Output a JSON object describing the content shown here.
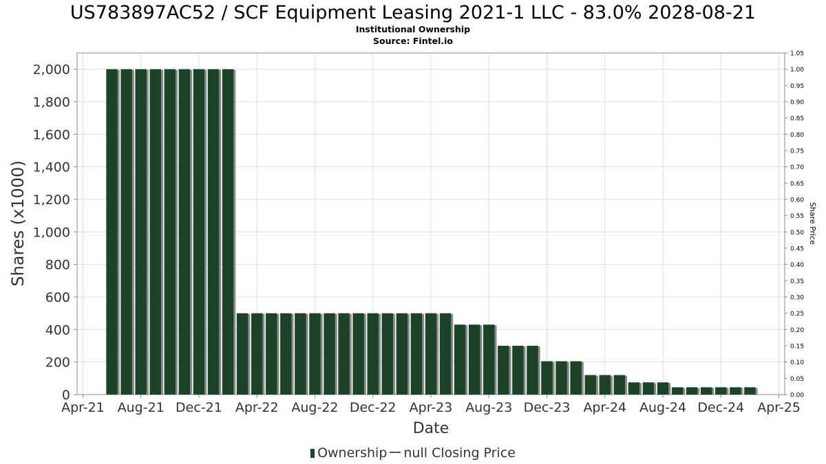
{
  "title": "US783897AC52 / SCF Equipment Leasing 2021-1 LLC - 83.0% 2028-08-21",
  "subtitle": "Institutional Ownership",
  "source": "Source: Fintel.io",
  "legend": {
    "ownership_label": "Ownership",
    "price_label": "null Closing Price"
  },
  "colors": {
    "bar": "#1c4327",
    "bar_shadow": "#8a8a8a",
    "grid": "#dddddd",
    "frame": "#888888"
  },
  "chart_data": {
    "type": "bar",
    "title": "US783897AC52 / SCF Equipment Leasing 2021-1 LLC - 83.0% 2028-08-21",
    "xlabel": "Date",
    "ylabel": "Shares (x1000)",
    "y2label": "Share Price",
    "x_range_months": [
      -0.4,
      48.4
    ],
    "x_ticks": [
      {
        "label": "Apr-21",
        "month": 0
      },
      {
        "label": "Aug-21",
        "month": 4
      },
      {
        "label": "Dec-21",
        "month": 8
      },
      {
        "label": "Apr-22",
        "month": 12
      },
      {
        "label": "Aug-22",
        "month": 16
      },
      {
        "label": "Dec-22",
        "month": 20
      },
      {
        "label": "Apr-23",
        "month": 24
      },
      {
        "label": "Aug-23",
        "month": 28
      },
      {
        "label": "Dec-23",
        "month": 32
      },
      {
        "label": "Apr-24",
        "month": 36
      },
      {
        "label": "Aug-24",
        "month": 40
      },
      {
        "label": "Dec-24",
        "month": 44
      },
      {
        "label": "Apr-25",
        "month": 48
      }
    ],
    "ylim": [
      0,
      2100
    ],
    "y_ticks": [
      {
        "label": "0",
        "value": 0
      },
      {
        "label": "200",
        "value": 200
      },
      {
        "label": "400",
        "value": 400
      },
      {
        "label": "600",
        "value": 600
      },
      {
        "label": "800",
        "value": 800
      },
      {
        "label": "1,000",
        "value": 1000
      },
      {
        "label": "1,200",
        "value": 1200
      },
      {
        "label": "1,400",
        "value": 1400
      },
      {
        "label": "1,600",
        "value": 1600
      },
      {
        "label": "1,800",
        "value": 1800
      },
      {
        "label": "2,000",
        "value": 2000
      }
    ],
    "y2lim": [
      0,
      1.05
    ],
    "y2_ticks": [
      "0.00",
      "0.05",
      "0.10",
      "0.15",
      "0.20",
      "0.25",
      "0.30",
      "0.35",
      "0.40",
      "0.45",
      "0.50",
      "0.55",
      "0.60",
      "0.65",
      "0.70",
      "0.75",
      "0.80",
      "0.85",
      "0.90",
      "0.95",
      "1.00",
      "1.05"
    ],
    "series": [
      {
        "name": "Ownership",
        "months": [
          2,
          3,
          4,
          5,
          6,
          7,
          8,
          9,
          10,
          11,
          12,
          13,
          14,
          15,
          16,
          17,
          18,
          19,
          20,
          21,
          22,
          23,
          24,
          25,
          26,
          27,
          28,
          29,
          30,
          31,
          32,
          33,
          34,
          35,
          36,
          37,
          38,
          39,
          40,
          41,
          42,
          43,
          44,
          45,
          46
        ],
        "values": [
          2000,
          2000,
          2000,
          2000,
          2000,
          2000,
          2000,
          2000,
          2000,
          500,
          500,
          500,
          500,
          500,
          500,
          500,
          500,
          500,
          500,
          500,
          500,
          500,
          500,
          500,
          430,
          430,
          430,
          300,
          300,
          300,
          205,
          205,
          205,
          120,
          120,
          120,
          75,
          75,
          75,
          45,
          45,
          45,
          45,
          45,
          45
        ]
      }
    ]
  }
}
